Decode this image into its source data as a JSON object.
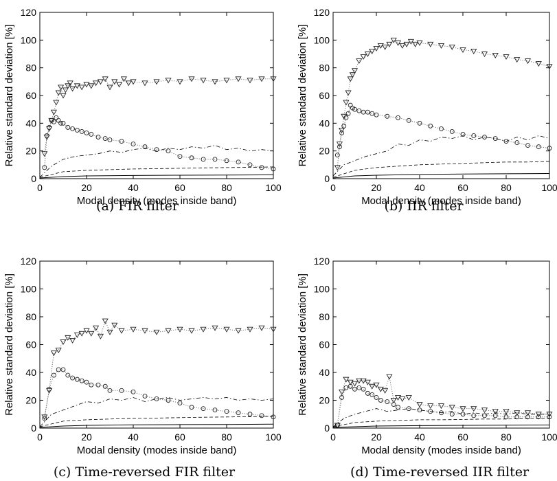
{
  "chart_data": [
    {
      "type": "scatter",
      "caption": "(a)  FIR filter",
      "xlabel": "Modal density (modes inside band)",
      "ylabel": "Relative standard deviation [%]",
      "xlim": [
        0,
        100
      ],
      "ylim": [
        0,
        120
      ],
      "xticks": [
        "0",
        "20",
        "40",
        "60",
        "80",
        "100"
      ],
      "yticks": [
        "0",
        "20",
        "40",
        "60",
        "80",
        "100",
        "120"
      ],
      "grid": false,
      "series": [
        {
          "style": "triangles",
          "x": [
            2,
            3,
            4,
            5,
            6,
            7,
            8,
            9,
            10,
            11,
            12,
            13,
            14,
            16,
            18,
            20,
            22,
            24,
            26,
            28,
            30,
            32,
            34,
            36,
            38,
            40,
            45,
            50,
            55,
            60,
            65,
            70,
            75,
            80,
            85,
            90,
            95,
            100
          ],
          "y": [
            18,
            30,
            36,
            42,
            48,
            55,
            62,
            66,
            60,
            64,
            67,
            69,
            65,
            67,
            66,
            68,
            67,
            69,
            70,
            72,
            66,
            70,
            68,
            72,
            69,
            70,
            69,
            70,
            71,
            70,
            72,
            71,
            70,
            71,
            72,
            71,
            72,
            72
          ]
        },
        {
          "style": "circles",
          "x": [
            2,
            3,
            4,
            5,
            6,
            7,
            8,
            9,
            10,
            12,
            14,
            16,
            18,
            20,
            22,
            25,
            28,
            30,
            35,
            40,
            45,
            50,
            55,
            60,
            65,
            70,
            75,
            80,
            85,
            90,
            95,
            100
          ],
          "y": [
            8,
            31,
            37,
            42,
            41,
            44,
            42,
            40,
            40,
            37,
            36,
            35,
            34,
            33,
            32,
            30,
            29,
            28,
            27,
            25,
            23,
            21,
            20,
            16,
            15,
            14,
            14,
            13,
            12,
            10,
            8,
            7
          ]
        },
        {
          "style": "dashdot",
          "x": [
            0,
            5,
            10,
            15,
            20,
            25,
            30,
            35,
            40,
            45,
            50,
            55,
            60,
            65,
            70,
            75,
            80,
            85,
            90,
            95,
            100
          ],
          "y": [
            1,
            9,
            14,
            16,
            17,
            18,
            20,
            19,
            21,
            22,
            20,
            22,
            21,
            23,
            22,
            24,
            21,
            22,
            20,
            21,
            20
          ]
        },
        {
          "style": "dashed",
          "x": [
            0,
            10,
            20,
            30,
            40,
            50,
            60,
            70,
            80,
            90,
            100
          ],
          "y": [
            1,
            5,
            6,
            6.5,
            7,
            7.2,
            7.5,
            7.8,
            8,
            8.2,
            8.5
          ]
        },
        {
          "style": "solid",
          "x": [
            0,
            10,
            20,
            40,
            60,
            80,
            100
          ],
          "y": [
            0.5,
            1.5,
            2,
            2.3,
            2.5,
            2.6,
            2.8
          ]
        }
      ]
    },
    {
      "type": "scatter",
      "caption": "(b)  IIR filter",
      "xlabel": "Modal density (modes inside band)",
      "ylabel": "Relative standard deviation [%]",
      "xlim": [
        0,
        100
      ],
      "ylim": [
        0,
        120
      ],
      "xticks": [
        "0",
        "20",
        "40",
        "60",
        "80",
        "100"
      ],
      "yticks": [
        "0",
        "20",
        "40",
        "60",
        "80",
        "100",
        "120"
      ],
      "grid": false,
      "series": [
        {
          "style": "triangles",
          "x": [
            2,
            3,
            4,
            5,
            6,
            7,
            8,
            9,
            10,
            12,
            14,
            16,
            18,
            20,
            22,
            24,
            26,
            28,
            30,
            32,
            34,
            36,
            38,
            40,
            45,
            50,
            55,
            60,
            65,
            70,
            75,
            80,
            85,
            90,
            95,
            100
          ],
          "y": [
            8,
            25,
            35,
            45,
            55,
            62,
            72,
            75,
            78,
            85,
            88,
            90,
            92,
            94,
            96,
            95,
            97,
            100,
            98,
            96,
            97,
            99,
            97,
            98,
            97,
            96,
            95,
            93,
            92,
            90,
            89,
            88,
            86,
            85,
            83,
            81
          ]
        },
        {
          "style": "circles",
          "x": [
            2,
            3,
            4,
            5,
            6,
            7,
            8,
            9,
            10,
            12,
            14,
            16,
            18,
            20,
            25,
            30,
            35,
            40,
            45,
            50,
            55,
            60,
            65,
            70,
            75,
            80,
            85,
            90,
            95,
            100
          ],
          "y": [
            17,
            23,
            33,
            38,
            44,
            47,
            53,
            51,
            50,
            49,
            48,
            48,
            47,
            46,
            45,
            44,
            42,
            40,
            38,
            36,
            34,
            32,
            31,
            30,
            29,
            27,
            26,
            24,
            23,
            22
          ]
        },
        {
          "style": "dashdot",
          "x": [
            0,
            5,
            10,
            15,
            20,
            25,
            30,
            35,
            40,
            45,
            50,
            55,
            60,
            65,
            70,
            75,
            80,
            85,
            90,
            95,
            100
          ],
          "y": [
            2,
            10,
            13,
            16,
            18,
            20,
            25,
            24,
            28,
            27,
            30,
            29,
            31,
            28,
            30,
            29,
            27,
            30,
            28,
            31,
            29
          ]
        },
        {
          "style": "dashed",
          "x": [
            0,
            10,
            20,
            30,
            40,
            50,
            60,
            70,
            80,
            90,
            100
          ],
          "y": [
            1,
            6,
            8,
            9,
            10,
            10.5,
            11,
            11.5,
            12,
            12,
            12.5
          ]
        },
        {
          "style": "solid",
          "x": [
            0,
            10,
            20,
            40,
            60,
            80,
            100
          ],
          "y": [
            0.5,
            2,
            2.5,
            3,
            3.3,
            3.5,
            3.7
          ]
        }
      ]
    },
    {
      "type": "scatter",
      "caption": "(c)  Time-reversed FIR filter",
      "xlabel": "Modal density (modes inside band)",
      "ylabel": "Relative standard deviation [%]",
      "xlim": [
        0,
        100
      ],
      "ylim": [
        0,
        120
      ],
      "xticks": [
        "0",
        "20",
        "40",
        "60",
        "80",
        "100"
      ],
      "yticks": [
        "0",
        "20",
        "40",
        "60",
        "80",
        "100",
        "120"
      ],
      "grid": false,
      "series": [
        {
          "style": "triangles",
          "x": [
            2,
            4,
            6,
            8,
            10,
            12,
            14,
            16,
            18,
            20,
            22,
            24,
            26,
            28,
            30,
            32,
            35,
            40,
            45,
            50,
            55,
            60,
            65,
            70,
            75,
            80,
            85,
            90,
            95,
            100
          ],
          "y": [
            8,
            27,
            54,
            56,
            62,
            65,
            63,
            67,
            68,
            70,
            68,
            72,
            66,
            77,
            69,
            74,
            70,
            71,
            70,
            69,
            70,
            71,
            70,
            71,
            72,
            71,
            70,
            71,
            72,
            71
          ]
        },
        {
          "style": "circles",
          "x": [
            2,
            4,
            6,
            8,
            10,
            12,
            14,
            16,
            18,
            20,
            22,
            25,
            28,
            30,
            35,
            40,
            45,
            50,
            55,
            60,
            65,
            70,
            75,
            80,
            85,
            90,
            95,
            100
          ],
          "y": [
            7,
            28,
            38,
            42,
            42,
            38,
            36,
            35,
            34,
            33,
            31,
            31,
            30,
            27,
            27,
            26,
            23,
            21,
            20,
            18,
            15,
            14,
            13,
            12,
            11,
            10,
            9,
            8
          ]
        },
        {
          "style": "dashdot",
          "x": [
            0,
            5,
            10,
            15,
            20,
            25,
            30,
            35,
            40,
            45,
            50,
            55,
            60,
            65,
            70,
            75,
            80,
            85,
            90,
            95,
            100
          ],
          "y": [
            1,
            10,
            13,
            16,
            19,
            18,
            21,
            20,
            22,
            19,
            21,
            22,
            20,
            21,
            22,
            21,
            22,
            20,
            21,
            20,
            21
          ]
        },
        {
          "style": "dashed",
          "x": [
            0,
            10,
            20,
            30,
            40,
            50,
            60,
            70,
            80,
            90,
            100
          ],
          "y": [
            1,
            5,
            6,
            6.5,
            7,
            7.2,
            7.5,
            7.8,
            8,
            8.2,
            8.5
          ]
        },
        {
          "style": "solid",
          "x": [
            0,
            10,
            20,
            40,
            60,
            80,
            100
          ],
          "y": [
            0.5,
            1.5,
            2,
            2.3,
            2.5,
            2.6,
            2.8
          ]
        }
      ]
    },
    {
      "type": "scatter",
      "caption": "(d)  Time-reversed IIR filter",
      "xlabel": "Modal density (modes inside band)",
      "ylabel": "Relative standard deviation [%]",
      "xlim": [
        0,
        100
      ],
      "ylim": [
        0,
        120
      ],
      "xticks": [
        "0",
        "20",
        "40",
        "60",
        "80",
        "100"
      ],
      "yticks": [
        "0",
        "20",
        "40",
        "60",
        "80",
        "100",
        "120"
      ],
      "grid": false,
      "series": [
        {
          "style": "triangles",
          "x": [
            2,
            4,
            6,
            8,
            10,
            12,
            14,
            16,
            18,
            20,
            22,
            24,
            26,
            28,
            30,
            32,
            35,
            40,
            45,
            50,
            55,
            60,
            65,
            70,
            75,
            80,
            85,
            90,
            95,
            100
          ],
          "y": [
            2,
            26,
            35,
            33,
            32,
            34,
            34,
            33,
            30,
            31,
            28,
            27,
            37,
            20,
            22,
            21,
            22,
            17,
            16,
            16,
            15,
            14,
            14,
            13,
            12,
            12,
            11,
            11,
            10,
            10
          ]
        },
        {
          "style": "circles",
          "x": [
            2,
            4,
            6,
            8,
            10,
            12,
            14,
            16,
            18,
            20,
            22,
            25,
            28,
            30,
            35,
            40,
            45,
            50,
            55,
            60,
            65,
            70,
            75,
            80,
            85,
            90,
            95,
            100
          ],
          "y": [
            2,
            22,
            29,
            30,
            28,
            29,
            28,
            25,
            24,
            22,
            20,
            19,
            17,
            15,
            14,
            13,
            12,
            11,
            10,
            10,
            9,
            9,
            9,
            8,
            8,
            8,
            8,
            8
          ]
        },
        {
          "style": "dashdot",
          "x": [
            0,
            5,
            10,
            15,
            20,
            25,
            30,
            35,
            40,
            45,
            50,
            55,
            60,
            65,
            70,
            75,
            80,
            85,
            90,
            95,
            100
          ],
          "y": [
            1,
            7,
            10,
            12,
            14,
            12,
            13,
            14,
            13,
            12,
            11,
            12,
            10,
            11,
            10,
            11,
            10,
            11,
            10,
            10,
            10
          ]
        },
        {
          "style": "dashed",
          "x": [
            0,
            10,
            20,
            30,
            40,
            50,
            60,
            70,
            80,
            90,
            100
          ],
          "y": [
            1,
            4,
            5,
            5.5,
            6,
            6,
            6.2,
            6.5,
            6.5,
            6.8,
            7
          ]
        },
        {
          "style": "solid",
          "x": [
            0,
            10,
            20,
            40,
            60,
            80,
            100
          ],
          "y": [
            0.5,
            1,
            1.5,
            1.8,
            2,
            2.1,
            2.2
          ]
        }
      ]
    }
  ]
}
